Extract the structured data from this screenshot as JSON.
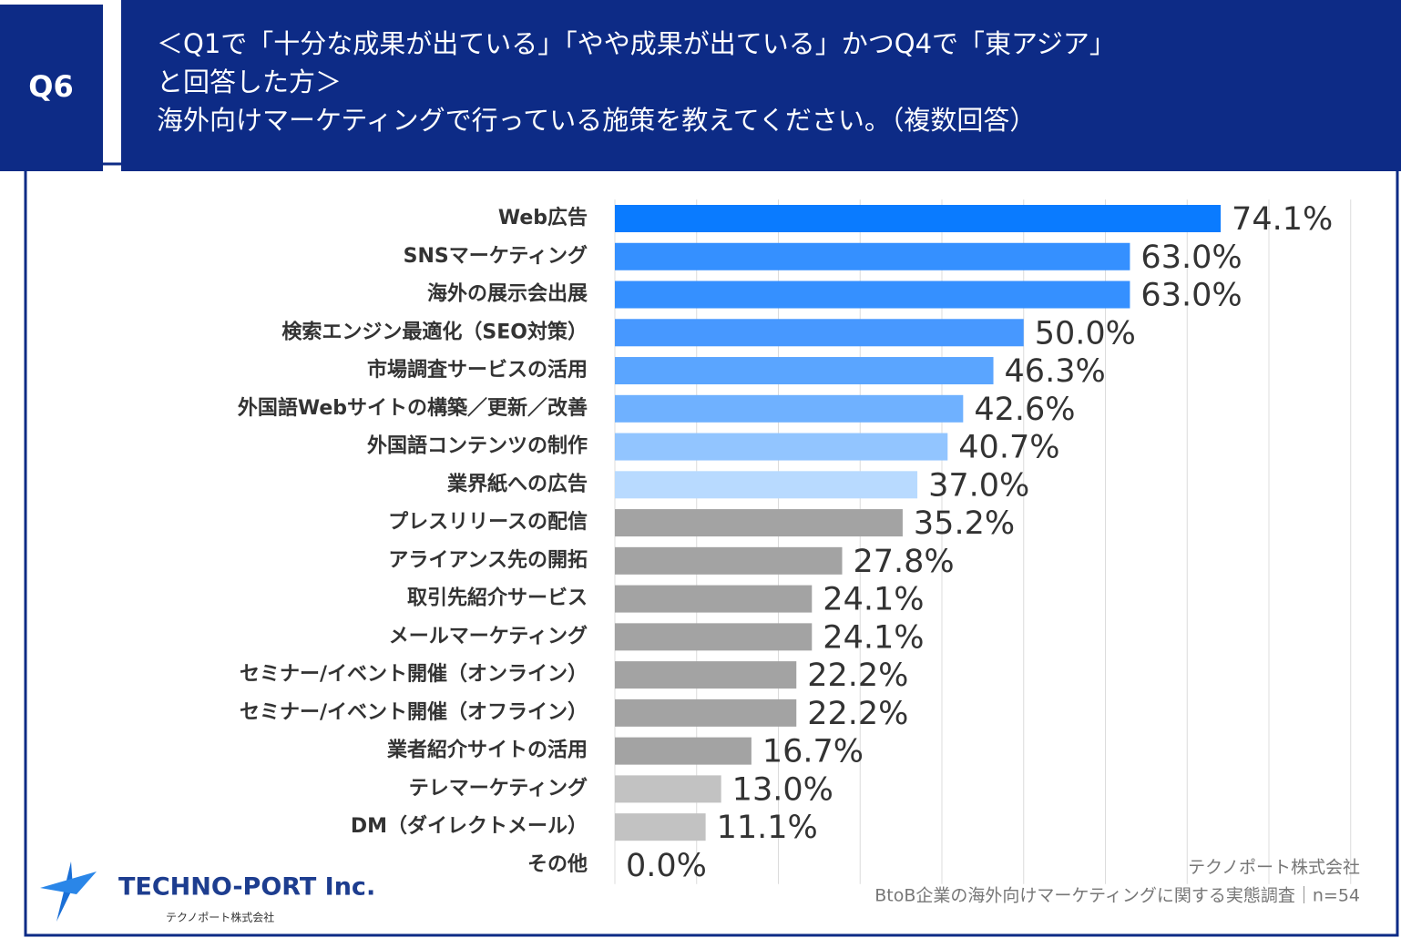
{
  "chart_data": {
    "type": "bar",
    "question_label": "Q6",
    "title": [
      "＜Q1で「十分な成果が出ている」「やや成果が出ている」かつQ4で「東アジア」",
      "と回答した方＞",
      "海外向けマーケティングで行っている施策を教えてください。（複数回答）"
    ],
    "categories": [
      "Web広告",
      "SNSマーケティング",
      "海外の展示会出展",
      "検索エンジン最適化（SEO対策）",
      "市場調査サービスの活用",
      "外国語Webサイトの構築／更新／改善",
      "外国語コンテンツの制作",
      "業界紙への広告",
      "プレスリリースの配信",
      "アライアンス先の開拓",
      "取引先紹介サービス",
      "メールマーケティング",
      "セミナー/イベント開催（オンライン）",
      "セミナー/イベント開催（オフライン）",
      "業者紹介サイトの活用",
      "テレマーケティング",
      "DM（ダイレクトメール）",
      "その他"
    ],
    "values": [
      74.1,
      63.0,
      63.0,
      50.0,
      46.3,
      42.6,
      40.7,
      37.0,
      35.2,
      27.8,
      24.1,
      24.1,
      22.2,
      22.2,
      16.7,
      13.0,
      11.1,
      0.0
    ],
    "value_labels": [
      "74.1%",
      "63.0%",
      "63.0%",
      "50.0%",
      "46.3%",
      "42.6%",
      "40.7%",
      "37.0%",
      "35.2%",
      "27.8%",
      "24.1%",
      "24.1%",
      "22.2%",
      "22.2%",
      "16.7%",
      "13.0%",
      "11.1%",
      "0.0%"
    ],
    "colors": [
      "#0a7bff",
      "#3590ff",
      "#3590ff",
      "#4798ff",
      "#5aa5ff",
      "#6fb1ff",
      "#92c5ff",
      "#b8daff",
      "#a3a3a3",
      "#a3a3a3",
      "#a3a3a3",
      "#a3a3a3",
      "#a3a3a3",
      "#a3a3a3",
      "#a3a3a3",
      "#c2c2c2",
      "#c2c2c2",
      "#c2c2c2"
    ],
    "xlim": [
      0,
      90
    ],
    "xticks": [
      0,
      10,
      20,
      30,
      40,
      50,
      60,
      70,
      80,
      90
    ],
    "grid": true,
    "source": [
      "テクノポート株式会社",
      "BtoB企業の海外向けマーケティングに関する実態調査｜n=54"
    ]
  },
  "logo": {
    "name": "TECHNO-PORT Inc.",
    "subname": "テクノポート株式会社"
  }
}
